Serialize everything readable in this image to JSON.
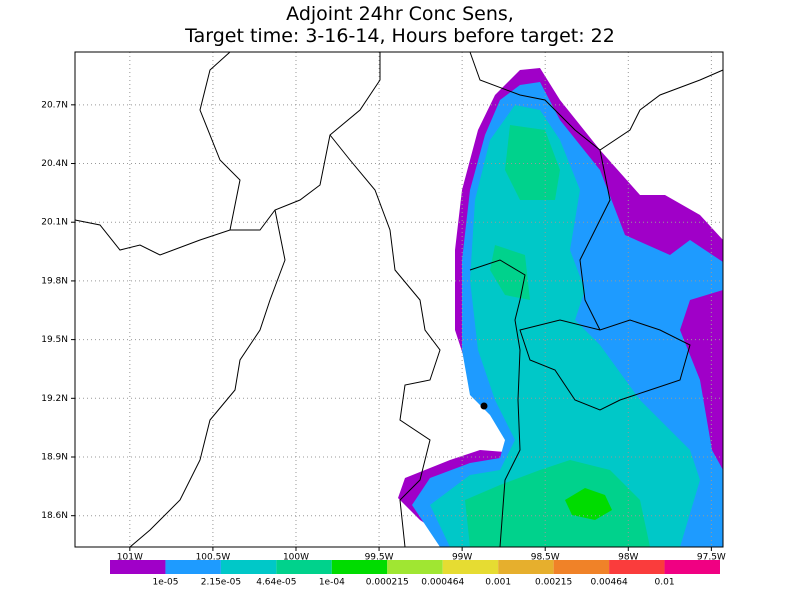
{
  "map": {
    "title": [
      "Adjoint 24hr Conc Sens,",
      "Target time: 3-16-14, Hours before target: 22"
    ],
    "xlim": [
      -101.33,
      -97.43
    ],
    "ylim": [
      18.44,
      20.97
    ],
    "xticks": [
      {
        "value": -101,
        "label": "101W"
      },
      {
        "value": -100.5,
        "label": "100.5W"
      },
      {
        "value": -100,
        "label": "100W"
      },
      {
        "value": -99.5,
        "label": "99.5W"
      },
      {
        "value": -99,
        "label": "99W"
      },
      {
        "value": -98.5,
        "label": "98.5W"
      },
      {
        "value": -98,
        "label": "98W"
      },
      {
        "value": -97.5,
        "label": "97.5W"
      }
    ],
    "yticks": [
      {
        "value": 20.7,
        "label": "20.7N"
      },
      {
        "value": 20.4,
        "label": "20.4N"
      },
      {
        "value": 20.1,
        "label": "20.1N"
      },
      {
        "value": 19.8,
        "label": "19.8N"
      },
      {
        "value": 19.5,
        "label": "19.5N"
      },
      {
        "value": 19.2,
        "label": "19.2N"
      },
      {
        "value": 18.9,
        "label": "18.9N"
      },
      {
        "value": 18.6,
        "label": "18.6N"
      }
    ],
    "colorbar": {
      "colors": [
        "#a000c8",
        "#1e9bff",
        "#00c8c8",
        "#00d28c",
        "#00dc00",
        "#a0e632",
        "#e6dc32",
        "#e6af2d",
        "#f08228",
        "#fa3c3c",
        "#f00082"
      ],
      "labels": [
        "1e-05",
        "2.15e-05",
        "4.64e-05",
        "1e-04",
        "0.000215",
        "0.000464",
        "0.001",
        "0.00215",
        "0.00464",
        "0.01"
      ]
    }
  }
}
